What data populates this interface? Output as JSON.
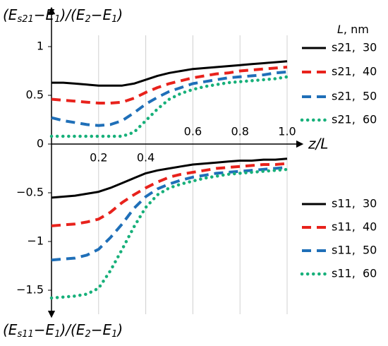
{
  "chart_data": {
    "type": "line",
    "y_label_top": [
      "(E",
      "s21",
      "−E",
      "1",
      ")/(E",
      "2",
      "−E",
      "1",
      ")"
    ],
    "y_label_bottom": [
      "(E",
      "s11",
      "−E",
      "1",
      ")/(E",
      "2",
      "−E",
      "1",
      ")"
    ],
    "x_label": "z/L",
    "legend_title": [
      "L",
      ", nm"
    ],
    "xlim": [
      0,
      1
    ],
    "ylim": [
      -1.75,
      1.37
    ],
    "xticks": [
      0.2,
      0.4,
      0.6,
      0.8,
      {
        "value": 1,
        "label": "1.0"
      }
    ],
    "yticks": [
      1,
      0.5,
      0,
      {
        "value": -0.5,
        "label": "−0.5"
      },
      {
        "value": -1,
        "label": "−1"
      },
      {
        "value": -1.5,
        "label": "−1.5"
      }
    ],
    "grid": "x",
    "x": [
      0,
      0.05,
      0.1,
      0.15,
      0.2,
      0.25,
      0.3,
      0.35,
      0.4,
      0.45,
      0.5,
      0.55,
      0.6,
      0.65,
      0.7,
      0.75,
      0.8,
      0.85,
      0.9,
      0.95,
      1
    ],
    "series": [
      {
        "name": "s21,  30",
        "color": "#000000",
        "style": "solid",
        "values": [
          0.63,
          0.63,
          0.62,
          0.61,
          0.6,
          0.6,
          0.6,
          0.62,
          0.66,
          0.7,
          0.73,
          0.75,
          0.77,
          0.78,
          0.79,
          0.8,
          0.81,
          0.82,
          0.83,
          0.84,
          0.85
        ]
      },
      {
        "name": "s21,  40",
        "color": "#e8221c",
        "style": "dashed",
        "values": [
          0.46,
          0.45,
          0.44,
          0.43,
          0.42,
          0.42,
          0.43,
          0.47,
          0.53,
          0.58,
          0.62,
          0.65,
          0.68,
          0.7,
          0.72,
          0.73,
          0.75,
          0.76,
          0.77,
          0.78,
          0.79
        ]
      },
      {
        "name": "s21,  50",
        "color": "#1f6fb8",
        "style": "dashed",
        "values": [
          0.27,
          0.24,
          0.22,
          0.2,
          0.19,
          0.2,
          0.24,
          0.32,
          0.41,
          0.48,
          0.54,
          0.58,
          0.62,
          0.64,
          0.66,
          0.68,
          0.69,
          0.7,
          0.71,
          0.73,
          0.74
        ]
      },
      {
        "name": "s21,  60",
        "color": "#17b07a",
        "style": "dotted",
        "values": [
          0.08,
          0.08,
          0.08,
          0.08,
          0.08,
          0.08,
          0.08,
          0.12,
          0.24,
          0.36,
          0.46,
          0.52,
          0.56,
          0.59,
          0.61,
          0.63,
          0.64,
          0.65,
          0.66,
          0.67,
          0.69
        ]
      },
      {
        "name": "s11,  30",
        "color": "#000000",
        "style": "solid",
        "values": [
          -0.55,
          -0.54,
          -0.53,
          -0.51,
          -0.49,
          -0.45,
          -0.4,
          -0.35,
          -0.3,
          -0.27,
          -0.25,
          -0.23,
          -0.21,
          -0.2,
          -0.19,
          -0.18,
          -0.17,
          -0.17,
          -0.16,
          -0.16,
          -0.15
        ]
      },
      {
        "name": "s11,  40",
        "color": "#e8221c",
        "style": "dashed",
        "values": [
          -0.84,
          -0.83,
          -0.82,
          -0.8,
          -0.77,
          -0.7,
          -0.6,
          -0.52,
          -0.45,
          -0.39,
          -0.34,
          -0.31,
          -0.29,
          -0.27,
          -0.25,
          -0.24,
          -0.23,
          -0.22,
          -0.21,
          -0.21,
          -0.2
        ]
      },
      {
        "name": "s11,  50",
        "color": "#1f6fb8",
        "style": "dashed",
        "values": [
          -1.19,
          -1.18,
          -1.17,
          -1.14,
          -1.08,
          -0.96,
          -0.82,
          -0.66,
          -0.54,
          -0.46,
          -0.41,
          -0.37,
          -0.34,
          -0.32,
          -0.3,
          -0.29,
          -0.28,
          -0.27,
          -0.26,
          -0.25,
          -0.24
        ]
      },
      {
        "name": "s11,  60",
        "color": "#17b07a",
        "style": "dotted",
        "values": [
          -1.58,
          -1.57,
          -1.56,
          -1.54,
          -1.48,
          -1.3,
          -1.08,
          -0.85,
          -0.65,
          -0.52,
          -0.45,
          -0.41,
          -0.38,
          -0.35,
          -0.33,
          -0.31,
          -0.3,
          -0.29,
          -0.28,
          -0.27,
          -0.26
        ]
      }
    ]
  }
}
